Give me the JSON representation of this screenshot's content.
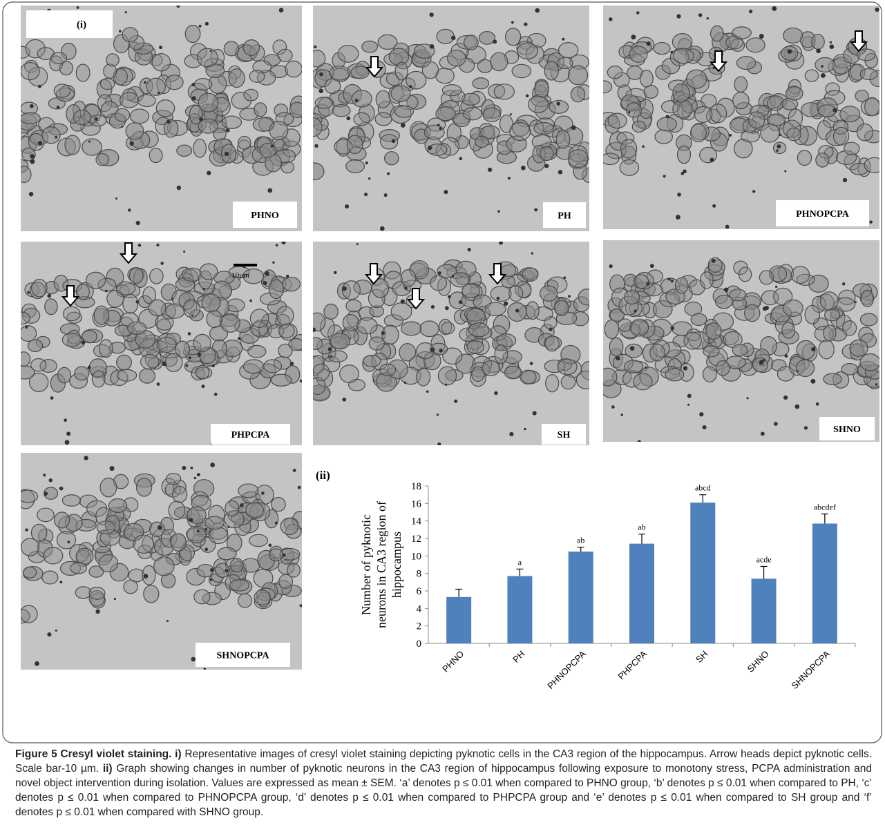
{
  "panel_label": "(i)",
  "panels": [
    {
      "label": "PHNO"
    },
    {
      "label": "PH"
    },
    {
      "label": "PHNOPCPA"
    },
    {
      "label": "PHPCPA"
    },
    {
      "label": "SH"
    },
    {
      "label": "SHNO"
    },
    {
      "label": "SHNOPCPA"
    }
  ],
  "scale_bar": "10µm",
  "chart_panel_label": "(ii)",
  "chart_data": {
    "type": "bar",
    "ylabel": [
      "Number of pyknotic",
      "neurons in CA3 region of",
      "hippocampus"
    ],
    "categories": [
      "PHNO",
      "PH",
      "PHNOPCPA",
      "PHPCPA",
      "SH",
      "SHNO",
      "SHNOPCPA"
    ],
    "values": [
      5.3,
      7.7,
      10.5,
      11.4,
      16.1,
      7.4,
      13.7
    ],
    "errors": [
      0.9,
      0.8,
      0.5,
      1.1,
      0.9,
      1.4,
      1.1
    ],
    "annotations": [
      null,
      "a",
      "ab",
      "ab",
      "abcd",
      "acde",
      "abcdef"
    ],
    "color": "#4f81bd",
    "ylim": [
      0,
      18
    ],
    "yticks": [
      0,
      2,
      4,
      6,
      8,
      10,
      12,
      14,
      16,
      18
    ]
  },
  "caption": {
    "title": "Figure 5 Cresyl violet staining.",
    "part_i": "i)",
    "text_i": "Representative images of cresyl violet staining depicting pyknotic cells in the CA3 region of the hippocampus. Arrow heads depict pyknotic cells. Scale bar-10 µm.",
    "part_ii": "ii)",
    "text_ii": "Graph showing changes in number of pyknotic neurons in the CA3 region of hippocampus following exposure to monotony stress, PCPA administration and novel object intervention during isolation. Values are expressed as mean ± SEM. ‘a’ denotes p ≤ 0.01 when compared to PHNO group, ‘b’ denotes p ≤ 0.01 when compared to PH, ‘c’ denotes p ≤ 0.01 when compared to PHNOPCPA group, ‘d’ denotes p ≤ 0.01 when compared to PHPCPA group and ‘e’ denotes p ≤ 0.01 when compared to SH group and ‘f’ denotes p ≤ 0.01 when compared with SHNO group."
  }
}
